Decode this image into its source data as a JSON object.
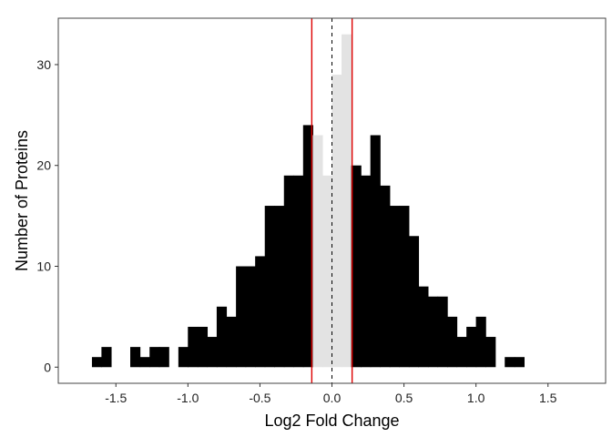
{
  "chart_data": {
    "type": "bar",
    "xlabel": "Log2 Fold Change",
    "ylabel": "Number of Proteins",
    "xlim": [
      -1.9,
      1.9
    ],
    "ylim": [
      -1.6,
      34.6
    ],
    "x_ticks": [
      -1.5,
      -1.0,
      -0.5,
      0.0,
      0.5,
      1.0,
      1.5
    ],
    "x_tick_labels": [
      "-1.5",
      "-1.0",
      "-0.5",
      "0.0",
      "0.5",
      "1.0",
      "1.5"
    ],
    "y_ticks": [
      0,
      10,
      20,
      30
    ],
    "y_tick_labels": [
      "0",
      "10",
      "20",
      "30"
    ],
    "bin_width": 0.0667,
    "bins": [
      {
        "x": -1.633,
        "value": 1
      },
      {
        "x": -1.567,
        "value": 2
      },
      {
        "x": -1.367,
        "value": 2
      },
      {
        "x": -1.3,
        "value": 1
      },
      {
        "x": -1.233,
        "value": 2
      },
      {
        "x": -1.167,
        "value": 2
      },
      {
        "x": -1.033,
        "value": 2
      },
      {
        "x": -0.967,
        "value": 4
      },
      {
        "x": -0.9,
        "value": 4
      },
      {
        "x": -0.833,
        "value": 3
      },
      {
        "x": -0.767,
        "value": 6
      },
      {
        "x": -0.7,
        "value": 5
      },
      {
        "x": -0.633,
        "value": 10
      },
      {
        "x": -0.567,
        "value": 10
      },
      {
        "x": -0.5,
        "value": 11
      },
      {
        "x": -0.433,
        "value": 16
      },
      {
        "x": -0.367,
        "value": 16
      },
      {
        "x": -0.3,
        "value": 19
      },
      {
        "x": -0.233,
        "value": 19
      },
      {
        "x": -0.167,
        "value": 24
      },
      {
        "x": -0.1,
        "value": 23
      },
      {
        "x": -0.033,
        "value": 19
      },
      {
        "x": 0.033,
        "value": 29
      },
      {
        "x": 0.1,
        "value": 33
      },
      {
        "x": 0.167,
        "value": 20
      },
      {
        "x": 0.233,
        "value": 19
      },
      {
        "x": 0.3,
        "value": 23
      },
      {
        "x": 0.367,
        "value": 18
      },
      {
        "x": 0.433,
        "value": 16
      },
      {
        "x": 0.5,
        "value": 16
      },
      {
        "x": 0.567,
        "value": 13
      },
      {
        "x": 0.633,
        "value": 8
      },
      {
        "x": 0.7,
        "value": 7
      },
      {
        "x": 0.767,
        "value": 7
      },
      {
        "x": 0.833,
        "value": 5
      },
      {
        "x": 0.9,
        "value": 3
      },
      {
        "x": 0.967,
        "value": 4
      },
      {
        "x": 1.033,
        "value": 5
      },
      {
        "x": 1.1,
        "value": 3
      },
      {
        "x": 1.233,
        "value": 1
      },
      {
        "x": 1.3,
        "value": 1
      }
    ],
    "threshold_lines": [
      -0.14,
      0.14
    ],
    "center_line": 0.0,
    "colors": {
      "bars_outside": "#000000",
      "bars_inside": "#e3e3e3",
      "threshold": "#dd0000",
      "center": "#000000",
      "panel_border": "#444444"
    },
    "grid": false,
    "legend": "none"
  }
}
